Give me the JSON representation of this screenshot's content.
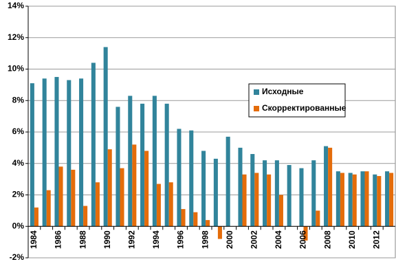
{
  "chart_data": {
    "type": "bar",
    "categories": [
      "1984",
      null,
      "1986",
      null,
      "1988",
      null,
      "1990",
      null,
      "1992",
      null,
      "1994",
      null,
      "1996",
      null,
      "1998",
      null,
      "2000",
      null,
      "2002",
      null,
      "2004",
      null,
      "2006",
      null,
      "2008",
      null,
      "2010",
      null,
      "2012",
      null
    ],
    "series": [
      {
        "name": "Исходные",
        "color": "#31849b",
        "values": [
          9.1,
          9.4,
          9.5,
          9.3,
          9.4,
          10.4,
          11.4,
          7.6,
          8.3,
          7.8,
          8.3,
          7.8,
          6.2,
          6.1,
          4.8,
          4.3,
          5.7,
          5.0,
          4.6,
          4.2,
          4.2,
          3.9,
          3.7,
          4.2,
          5.1,
          3.5,
          3.4,
          3.5,
          3.3,
          3.5
        ]
      },
      {
        "name": "Скорректированные",
        "color": "#e46c0a",
        "values": [
          1.2,
          2.3,
          3.8,
          3.6,
          1.3,
          2.8,
          4.9,
          3.7,
          5.2,
          4.8,
          2.7,
          2.8,
          1.1,
          0.9,
          0.4,
          -0.8,
          null,
          3.3,
          3.4,
          3.3,
          2.0,
          null,
          -0.9,
          1.0,
          5.0,
          3.4,
          3.3,
          3.5,
          3.2,
          3.4
        ]
      }
    ],
    "ylim": [
      -2,
      14
    ],
    "yticks": [
      {
        "value": -2,
        "label": "-2%"
      },
      {
        "value": 0,
        "label": "0%"
      },
      {
        "value": 2,
        "label": "2%"
      },
      {
        "value": 4,
        "label": "4%"
      },
      {
        "value": 6,
        "label": "6%"
      },
      {
        "value": 8,
        "label": "8%"
      },
      {
        "value": 10,
        "label": "10%"
      },
      {
        "value": 12,
        "label": "12%"
      },
      {
        "value": 14,
        "label": "14%"
      }
    ],
    "grid": true
  }
}
